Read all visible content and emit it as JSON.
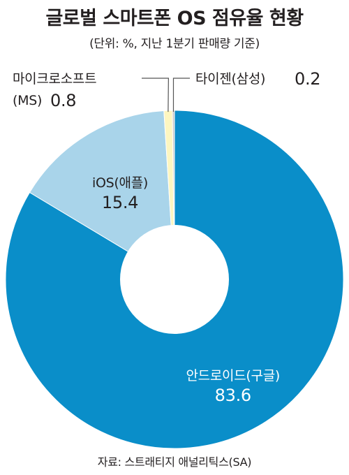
{
  "header": {
    "title": "글로벌 스마트폰 OS 점유율 현황",
    "subtitle": "(단위: %, 지난 1분기 판매량 기준)"
  },
  "footer": {
    "source": "자료: 스트래티지 애널리틱스(SA)"
  },
  "chart_data": {
    "type": "pie",
    "style": "donut",
    "title": "글로벌 스마트폰 OS 점유율 현황",
    "unit": "%",
    "series": [
      {
        "name": "안드로이드(구글)",
        "value": 83.6,
        "color": "#0a8ec9",
        "label_color": "#ffffff",
        "label_inside": true
      },
      {
        "name": "iOS(애플)",
        "value": 15.4,
        "color": "#a9d4ea",
        "label_color": "#231f20",
        "label_inside": true
      },
      {
        "name": "마이크로소프트(MS)",
        "value": 0.8,
        "color": "#fdf6c0",
        "label_color": "#231f20",
        "label_inside": false
      },
      {
        "name": "타이젠(삼성)",
        "value": 0.2,
        "color": "#c9c9c9",
        "label_color": "#231f20",
        "label_inside": false
      }
    ],
    "callouts": {
      "ms_line1": "마이크로소프트",
      "ms_line2": "(MS)",
      "tizen": "타이젠(삼성)"
    }
  }
}
